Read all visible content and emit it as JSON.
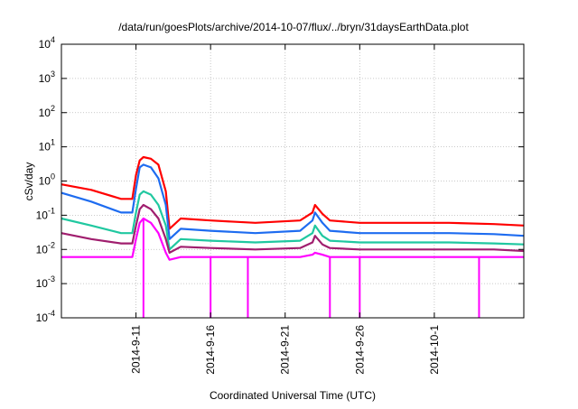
{
  "chart_data": {
    "type": "line",
    "title": "/data/run/goesPlots/archive/2014-10-07/flux/../bryn/31daysEarthData.plot",
    "xlabel": "Coordinated Universal Time (UTC)",
    "ylabel": "cSv/day",
    "x_scale": "date",
    "xlim": [
      "2014-09-06",
      "2014-10-07"
    ],
    "y_scale": "log",
    "ylim": [
      0.0001,
      10000
    ],
    "y_ticks": [
      {
        "value": 0.0001,
        "base": "10",
        "exp": "-4"
      },
      {
        "value": 0.001,
        "base": "10",
        "exp": "-3"
      },
      {
        "value": 0.01,
        "base": "10",
        "exp": "-2"
      },
      {
        "value": 0.1,
        "base": "10",
        "exp": "-1"
      },
      {
        "value": 1,
        "base": "10",
        "exp": "0"
      },
      {
        "value": 10,
        "base": "10",
        "exp": "1"
      },
      {
        "value": 100,
        "base": "10",
        "exp": "2"
      },
      {
        "value": 1000,
        "base": "10",
        "exp": "3"
      },
      {
        "value": 10000,
        "base": "10",
        "exp": "4"
      }
    ],
    "x_ticks": [
      {
        "value": "2014-09-11",
        "label": "2014-9-11"
      },
      {
        "value": "2014-09-16",
        "label": "2014-9-16"
      },
      {
        "value": "2014-09-21",
        "label": "2014-9-21"
      },
      {
        "value": "2014-09-26",
        "label": "2014-9-26"
      },
      {
        "value": "2014-10-01",
        "label": "2014-10-1"
      }
    ],
    "grid": true,
    "legend": "none",
    "series": [
      {
        "color": "#ff0000",
        "x": [
          "2014-09-06",
          "2014-09-08",
          "2014-09-10",
          "2014-09-10 18:00",
          "2014-09-11",
          "2014-09-11 06:00",
          "2014-09-11 12:00",
          "2014-09-12",
          "2014-09-12 12:00",
          "2014-09-13",
          "2014-09-13 06:00",
          "2014-09-14",
          "2014-09-16",
          "2014-09-19",
          "2014-09-22",
          "2014-09-22 20:00",
          "2014-09-23",
          "2014-09-23 12:00",
          "2014-09-24",
          "2014-09-26",
          "2014-09-29",
          "2014-10-02",
          "2014-10-05",
          "2014-10-07"
        ],
        "values": [
          0.8,
          0.55,
          0.3,
          0.3,
          1.5,
          4.0,
          5.0,
          4.5,
          3.0,
          0.5,
          0.04,
          0.08,
          0.07,
          0.06,
          0.07,
          0.12,
          0.2,
          0.11,
          0.07,
          0.06,
          0.06,
          0.06,
          0.055,
          0.05
        ]
      },
      {
        "color": "#1e6cf0",
        "x": [
          "2014-09-06",
          "2014-09-08",
          "2014-09-10",
          "2014-09-10 18:00",
          "2014-09-11",
          "2014-09-11 06:00",
          "2014-09-11 12:00",
          "2014-09-12",
          "2014-09-12 12:00",
          "2014-09-13",
          "2014-09-13 06:00",
          "2014-09-14",
          "2014-09-16",
          "2014-09-19",
          "2014-09-22",
          "2014-09-22 20:00",
          "2014-09-23",
          "2014-09-23 12:00",
          "2014-09-24",
          "2014-09-26",
          "2014-09-29",
          "2014-10-02",
          "2014-10-05",
          "2014-10-07"
        ],
        "values": [
          0.45,
          0.25,
          0.12,
          0.12,
          0.6,
          2.5,
          3.0,
          2.5,
          1.2,
          0.2,
          0.02,
          0.04,
          0.035,
          0.03,
          0.035,
          0.07,
          0.12,
          0.06,
          0.035,
          0.03,
          0.03,
          0.03,
          0.028,
          0.025
        ]
      },
      {
        "color": "#20c8a0",
        "x": [
          "2014-09-06",
          "2014-09-08",
          "2014-09-10",
          "2014-09-10 18:00",
          "2014-09-11",
          "2014-09-11 06:00",
          "2014-09-11 12:00",
          "2014-09-12",
          "2014-09-12 12:00",
          "2014-09-13",
          "2014-09-13 06:00",
          "2014-09-14",
          "2014-09-16",
          "2014-09-19",
          "2014-09-22",
          "2014-09-22 20:00",
          "2014-09-23",
          "2014-09-23 12:00",
          "2014-09-24",
          "2014-09-26",
          "2014-09-29",
          "2014-10-02",
          "2014-10-05",
          "2014-10-07"
        ],
        "values": [
          0.08,
          0.05,
          0.03,
          0.03,
          0.12,
          0.4,
          0.5,
          0.4,
          0.2,
          0.05,
          0.01,
          0.02,
          0.018,
          0.016,
          0.018,
          0.03,
          0.05,
          0.025,
          0.018,
          0.016,
          0.016,
          0.016,
          0.015,
          0.014
        ]
      },
      {
        "color": "#a01e6e",
        "x": [
          "2014-09-06",
          "2014-09-08",
          "2014-09-10",
          "2014-09-10 18:00",
          "2014-09-11",
          "2014-09-11 06:00",
          "2014-09-11 12:00",
          "2014-09-12",
          "2014-09-12 12:00",
          "2014-09-13",
          "2014-09-13 06:00",
          "2014-09-14",
          "2014-09-16",
          "2014-09-19",
          "2014-09-22",
          "2014-09-22 20:00",
          "2014-09-23",
          "2014-09-23 12:00",
          "2014-09-24",
          "2014-09-26",
          "2014-09-29",
          "2014-10-02",
          "2014-10-05",
          "2014-10-07"
        ],
        "values": [
          0.03,
          0.02,
          0.015,
          0.015,
          0.05,
          0.15,
          0.2,
          0.15,
          0.08,
          0.02,
          0.008,
          0.012,
          0.011,
          0.01,
          0.011,
          0.016,
          0.025,
          0.014,
          0.011,
          0.01,
          0.01,
          0.01,
          0.01,
          0.009
        ]
      },
      {
        "color": "#ff00ff",
        "x": [
          "2014-09-06",
          "2014-09-08",
          "2014-09-10",
          "2014-09-10 18:00",
          "2014-09-11",
          "2014-09-11 06:00",
          "2014-09-11 12:00",
          "2014-09-12",
          "2014-09-12 12:00",
          "2014-09-13",
          "2014-09-13 06:00",
          "2014-09-14",
          "2014-09-16",
          "2014-09-19",
          "2014-09-22",
          "2014-09-22 20:00",
          "2014-09-23",
          "2014-09-23 12:00",
          "2014-09-24",
          "2014-09-26",
          "2014-09-29",
          "2014-10-02",
          "2014-10-05",
          "2014-10-07"
        ],
        "values": [
          0.006,
          0.006,
          0.006,
          0.006,
          0.02,
          0.06,
          0.08,
          0.06,
          0.03,
          0.008,
          0.005,
          0.006,
          0.006,
          0.006,
          0.006,
          0.007,
          0.008,
          0.007,
          0.006,
          0.006,
          0.006,
          0.006,
          0.006,
          0.006
        ],
        "dips": {
          "x": [
            "2014-09-11 12:00",
            "2014-09-16",
            "2014-09-18 12:00",
            "2014-09-24",
            "2014-09-26",
            "2014-10-04"
          ],
          "value": 0.0001
        }
      }
    ]
  }
}
